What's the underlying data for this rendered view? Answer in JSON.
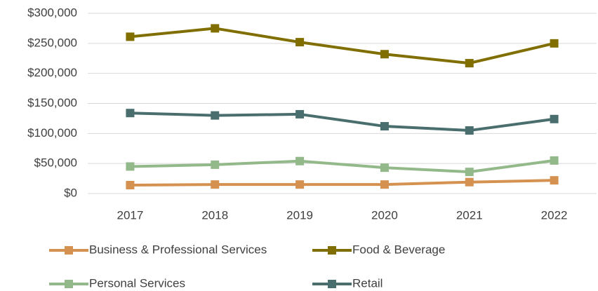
{
  "chart_data": {
    "type": "line",
    "categories": [
      "2017",
      "2018",
      "2019",
      "2020",
      "2021",
      "2022"
    ],
    "series": [
      {
        "name": "Business & Professional Services",
        "color": "#d4914f",
        "values": [
          14000,
          15000,
          15000,
          15000,
          19000,
          22000
        ]
      },
      {
        "name": "Food & Beverage",
        "color": "#806f00",
        "values": [
          261000,
          275000,
          252000,
          232000,
          217000,
          250000
        ]
      },
      {
        "name": "Personal Services",
        "color": "#93b98b",
        "values": [
          45000,
          48000,
          54000,
          43000,
          36000,
          55000
        ]
      },
      {
        "name": "Retail",
        "color": "#4a6e6e",
        "values": [
          134000,
          130000,
          132000,
          112000,
          105000,
          124000
        ]
      }
    ],
    "ylim": [
      0,
      300000
    ],
    "yticks": [
      {
        "value": 0,
        "label": "$0"
      },
      {
        "value": 50000,
        "label": "$50,000"
      },
      {
        "value": 100000,
        "label": "$100,000"
      },
      {
        "value": 150000,
        "label": "$150,000"
      },
      {
        "value": 200000,
        "label": "$200,000"
      },
      {
        "value": 250000,
        "label": "$250,000"
      },
      {
        "value": 300000,
        "label": "$300,000"
      }
    ],
    "grid": true,
    "legend": "bottom"
  }
}
